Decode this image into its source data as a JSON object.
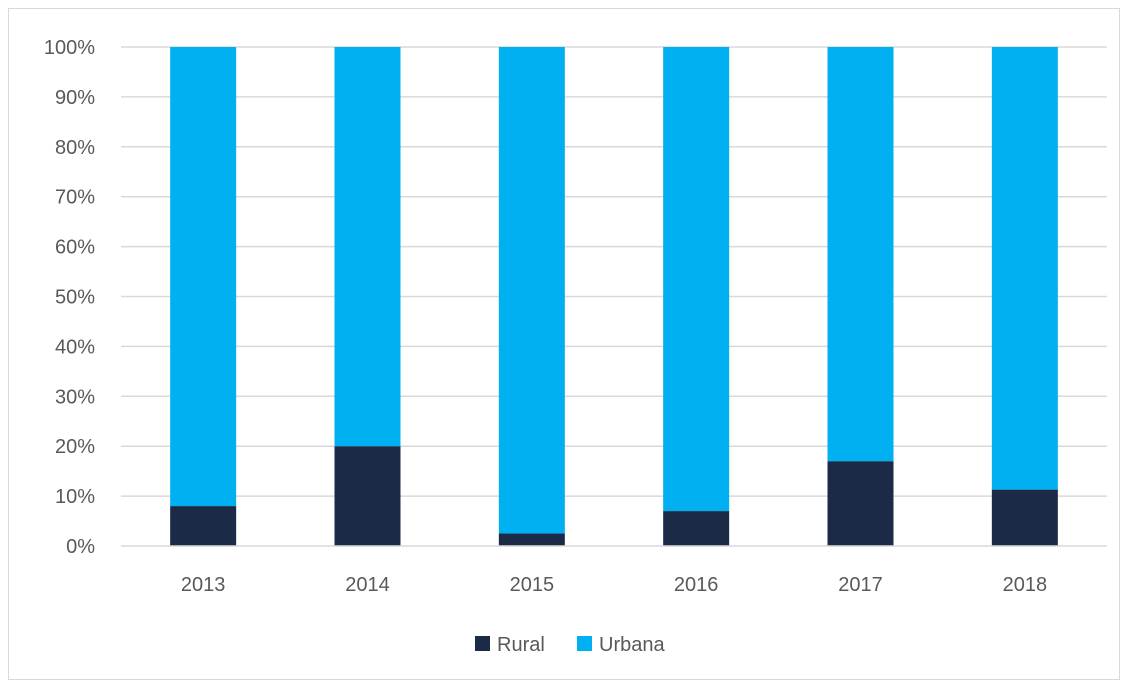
{
  "chart_data": {
    "type": "bar",
    "stacked": true,
    "categories": [
      "2013",
      "2014",
      "2015",
      "2016",
      "2017",
      "2018"
    ],
    "series": [
      {
        "name": "Rural",
        "color": "#1b2a47",
        "values": [
          8,
          20,
          2.5,
          7,
          17,
          11.3
        ]
      },
      {
        "name": "Urbana",
        "color": "#00b0f0",
        "values": [
          92,
          80,
          97.5,
          93,
          83,
          88.7
        ]
      }
    ],
    "ylim": [
      0,
      100
    ],
    "yticks": [
      "0%",
      "10%",
      "20%",
      "30%",
      "40%",
      "50%",
      "60%",
      "70%",
      "80%",
      "90%",
      "100%"
    ],
    "grid": true,
    "gridColor": "#d9d9d9",
    "legend_position": "bottom",
    "title": "",
    "xlabel": "",
    "ylabel": ""
  }
}
